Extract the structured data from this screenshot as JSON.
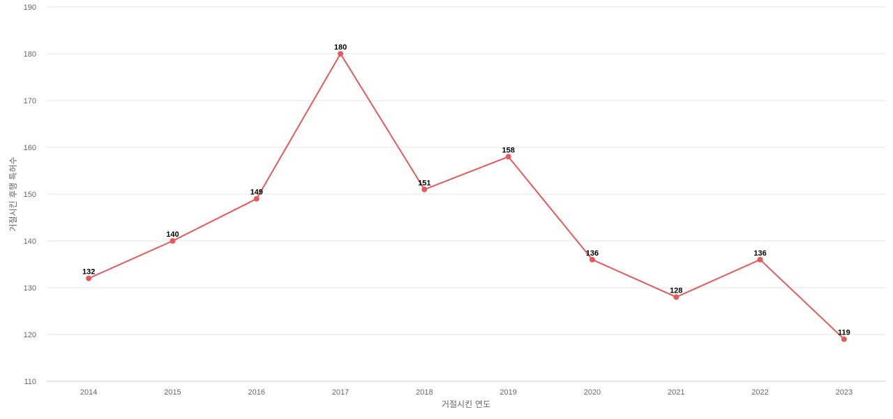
{
  "chart_data": {
    "type": "line",
    "title": "",
    "xlabel": "거절시킨 연도",
    "ylabel": "거절시킨 후행 특허수",
    "categories": [
      "2014",
      "2015",
      "2016",
      "2017",
      "2018",
      "2019",
      "2020",
      "2021",
      "2022",
      "2023"
    ],
    "series": [
      {
        "values": [
          132,
          140,
          149,
          180,
          151,
          158,
          136,
          128,
          136,
          119
        ],
        "color": "#e8585a"
      }
    ],
    "ylim": [
      110,
      190
    ],
    "yticks": [
      110,
      120,
      130,
      140,
      150,
      160,
      170,
      180,
      190
    ],
    "grid": true,
    "data_labels": true
  }
}
